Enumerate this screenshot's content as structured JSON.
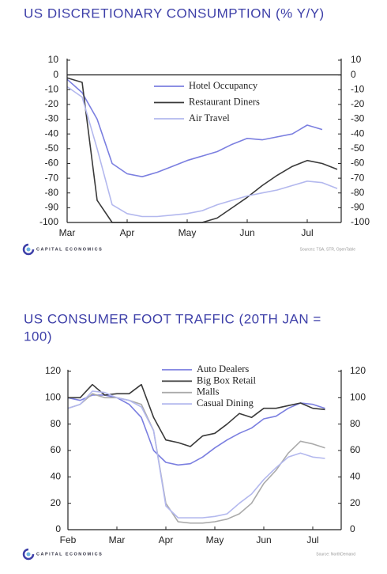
{
  "chart_data": [
    {
      "type": "line",
      "title": "US DISCRETIONARY CONSUMPTION (% Y/Y)",
      "categories": [
        "Mar",
        null,
        null,
        null,
        "Apr",
        null,
        null,
        null,
        "May",
        null,
        null,
        null,
        "Jun",
        null,
        null,
        null,
        "Jul",
        null,
        null
      ],
      "series": [
        {
          "name": "Hotel Occupancy",
          "color": "#7b7fe0",
          "values": [
            -3,
            -12,
            -30,
            -60,
            -67,
            -69,
            -66,
            -62,
            -58,
            -55,
            -52,
            -47,
            -43,
            -44,
            -42,
            -40,
            -34,
            -37,
            null
          ]
        },
        {
          "name": "Restaurant Diners",
          "color": "#3a3a3a",
          "values": [
            -2,
            -5,
            -85,
            -100,
            -100,
            -100,
            -100,
            -100,
            -100,
            -100,
            -97,
            -90,
            -83,
            -75,
            -68,
            -62,
            -58,
            -60,
            -64
          ]
        },
        {
          "name": "Air Travel",
          "color": "#b3b8ee",
          "values": [
            -8,
            -15,
            -50,
            -88,
            -94,
            -96,
            -96,
            -95,
            -94,
            -92,
            -88,
            -85,
            -82,
            -80,
            -78,
            -75,
            -72,
            -73,
            -77
          ]
        }
      ],
      "ylim": [
        -100,
        10
      ],
      "yticks": [
        10,
        0,
        -10,
        -20,
        -30,
        -40,
        -50,
        -60,
        -70,
        -80,
        -90,
        -100
      ],
      "logo": "CAPITAL ECONOMICS",
      "source": "Sources: TSA, STR, OpenTable"
    },
    {
      "type": "line",
      "title": "US CONSUMER FOOT TRAFFIC (20TH JAN = 100)",
      "categories": [
        "Feb",
        null,
        null,
        null,
        "Mar",
        null,
        null,
        null,
        "Apr",
        null,
        null,
        null,
        "May",
        null,
        null,
        null,
        "Jun",
        null,
        null,
        null,
        "Jul",
        null
      ],
      "series": [
        {
          "name": "Auto Dealers",
          "color": "#7b7fe0",
          "values": [
            100,
            98,
            102,
            102,
            100,
            95,
            85,
            60,
            51,
            49,
            50,
            55,
            62,
            68,
            73,
            77,
            84,
            86,
            92,
            96,
            95,
            92
          ]
        },
        {
          "name": "Big Box Retail",
          "color": "#3a3a3a",
          "values": [
            100,
            100,
            110,
            102,
            103,
            103,
            110,
            85,
            68,
            66,
            63,
            71,
            73,
            80,
            88,
            85,
            92,
            92,
            94,
            96,
            92,
            91
          ]
        },
        {
          "name": "Malls",
          "color": "#aaaaaa",
          "values": [
            92,
            95,
            103,
            100,
            100,
            98,
            95,
            75,
            20,
            6,
            5,
            5,
            6,
            8,
            12,
            20,
            35,
            45,
            58,
            67,
            65,
            62
          ]
        },
        {
          "name": "Casual Dining",
          "color": "#b3b8ee",
          "values": [
            92,
            95,
            105,
            104,
            100,
            98,
            93,
            75,
            18,
            9,
            9,
            9,
            10,
            12,
            20,
            27,
            38,
            47,
            55,
            58,
            55,
            54
          ]
        }
      ],
      "ylim": [
        0,
        120
      ],
      "yticks": [
        120,
        100,
        80,
        60,
        40,
        20,
        0
      ],
      "logo": "CAPITAL ECONOMICS",
      "source": "Source: NorthDemand"
    }
  ]
}
